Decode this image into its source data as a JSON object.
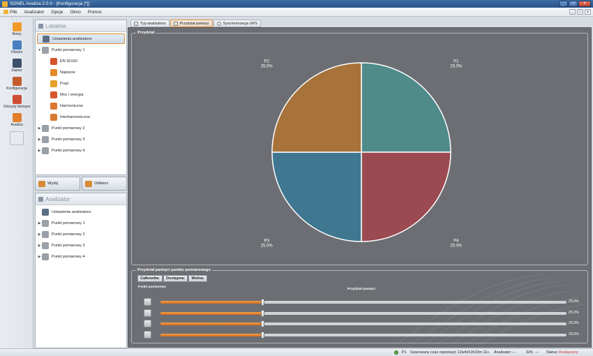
{
  "window": {
    "title": "SONEL Analiza 2.0.0 - [Konfiguracja [*]]",
    "controls": [
      "_",
      "□",
      "x"
    ],
    "mdi_controls": [
      "_",
      "□",
      "x"
    ]
  },
  "menu": [
    {
      "label": "Plik",
      "icon": "folder-icon"
    },
    {
      "label": "Analizator"
    },
    {
      "label": "Opcje"
    },
    {
      "label": "Okno"
    },
    {
      "label": "Pomoc"
    }
  ],
  "toolbar": {
    "grip": "⋮⋮⋮",
    "items": [
      {
        "label": "Nowy",
        "icon": "new-icon",
        "color": "#f09a2b"
      },
      {
        "label": "Otwórz",
        "icon": "open-icon",
        "color": "#4a7fc1"
      },
      {
        "label": "Zapisz",
        "icon": "save-icon",
        "color": "#3c4f6b"
      },
      {
        "label": "Konfiguracja",
        "icon": "configuration-icon",
        "color": "#c35a2a"
      },
      {
        "label": "Odczyty bieżące",
        "icon": "current-readings-icon",
        "color": "#d04e35"
      },
      {
        "label": "Analiza",
        "icon": "analysis-icon",
        "color": "#e27e2b"
      },
      {
        "label": "",
        "icon": "tools-icon",
        "color": "#a4a8ae"
      }
    ]
  },
  "local_panel": {
    "title": "Lokalnie",
    "items": [
      {
        "label": "Ustawienia analizatora",
        "icon": "analyzer-settings-icon",
        "color": "#5a6e86",
        "arrow": "",
        "selected": true
      },
      {
        "label": "Punkt pomiarowy 1",
        "icon": "measurement-point-icon",
        "color": "#9aa0a8",
        "arrow": "▼"
      },
      {
        "label": "EN 50160",
        "icon": "en50160-icon",
        "color": "#d6552d",
        "arrow": ""
      },
      {
        "label": "Napięcie",
        "icon": "voltage-icon",
        "color": "#e28a2c",
        "arrow": ""
      },
      {
        "label": "Prąd",
        "icon": "current-icon",
        "color": "#e6a02b",
        "arrow": ""
      },
      {
        "label": "Moc i energia",
        "icon": "power-energy-icon",
        "color": "#d6572d",
        "arrow": ""
      },
      {
        "label": "Harmoniczne",
        "icon": "harmonics-icon",
        "color": "#d9782e",
        "arrow": ""
      },
      {
        "label": "Interharmoniczne",
        "icon": "interharmonics-icon",
        "color": "#d9782e",
        "arrow": ""
      },
      {
        "label": "Punkt pomiarowy 2",
        "icon": "measurement-point-icon",
        "color": "#9aa0a8",
        "arrow": "▶"
      },
      {
        "label": "Punkt pomiarowy 3",
        "icon": "measurement-point-icon",
        "color": "#9aa0a8",
        "arrow": "▶"
      },
      {
        "label": "Punkt pomiarowy 4",
        "icon": "measurement-point-icon",
        "color": "#9aa0a8",
        "arrow": "▶"
      }
    ]
  },
  "buttons": {
    "send": "Wyślij",
    "receive": "Odbierz"
  },
  "analyzer_panel": {
    "title": "Analizator",
    "items": [
      {
        "label": "Ustawienia analizatora",
        "icon": "analyzer-settings-icon",
        "color": "#5a6e86",
        "arrow": ""
      },
      {
        "label": "Punkt pomiarowy 1",
        "icon": "measurement-point-icon",
        "color": "#9aa0a8",
        "arrow": "▶"
      },
      {
        "label": "Punkt pomiarowy 2",
        "icon": "measurement-point-icon",
        "color": "#9aa0a8",
        "arrow": "▶"
      },
      {
        "label": "Punkt pomiarowy 3",
        "icon": "measurement-point-icon",
        "color": "#9aa0a8",
        "arrow": "▶"
      },
      {
        "label": "Punkt pomiarowy 4",
        "icon": "measurement-point-icon",
        "color": "#9aa0a8",
        "arrow": "▶"
      }
    ]
  },
  "tabs": [
    {
      "label": "Typ analizatora",
      "active": false
    },
    {
      "label": "Przydział pamięci",
      "active": true
    },
    {
      "label": "Synchronizacja GPS",
      "active": false
    }
  ],
  "allocation_group": {
    "title": "Przydział"
  },
  "chart_data": {
    "type": "pie",
    "title": "Przydział",
    "slices": [
      {
        "label": "P1",
        "value": 25.0,
        "text": "25.0%",
        "color": "#4f8b8a"
      },
      {
        "label": "P4",
        "value": 25.0,
        "text": "25.0%",
        "color": "#9b4a52"
      },
      {
        "label": "P3",
        "value": 25.0,
        "text": "25.0%",
        "color": "#3f7790"
      },
      {
        "label": "P2",
        "value": 25.0,
        "text": "25.0%",
        "color": "#a8733a"
      }
    ]
  },
  "point_allocation": {
    "title": "Przydział pamięci punktu pomiarowego",
    "total_label": "Całkowita:",
    "available_label": "Dostępna:",
    "free_label": "Wolna:",
    "col_point": "Punkt pomiarowy",
    "col_alloc": "Przydział pamięci",
    "rows": [
      {
        "value": 25.0,
        "text": "25.0%"
      },
      {
        "value": 25.0,
        "text": "25.0%"
      },
      {
        "value": 25.0,
        "text": "25.0%"
      },
      {
        "value": 25.0,
        "text": "25.0%"
      }
    ]
  },
  "status": {
    "point": "P1",
    "estimate": "Szacowany czas rejestracji: 12w4d13h33m 11s",
    "analyzer_label": "Analizator:",
    "analyzer_value": "---",
    "sn_label": "S/N:",
    "sn_value": "---",
    "status_label": "Status:",
    "status_value": "Rozłączony"
  }
}
